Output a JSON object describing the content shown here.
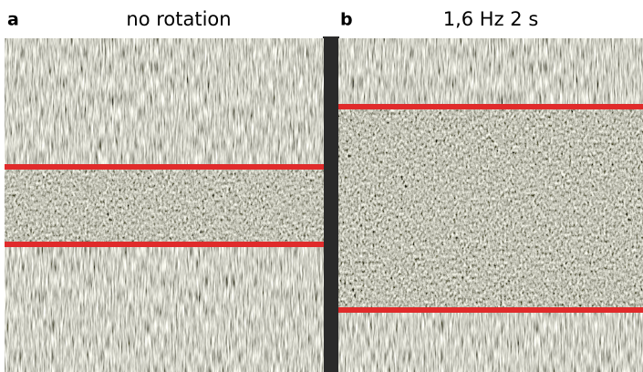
{
  "panels": [
    {
      "label": "a",
      "title": "no rotation"
    },
    {
      "label": "b",
      "title": "1,6 Hz 2 s"
    }
  ]
}
